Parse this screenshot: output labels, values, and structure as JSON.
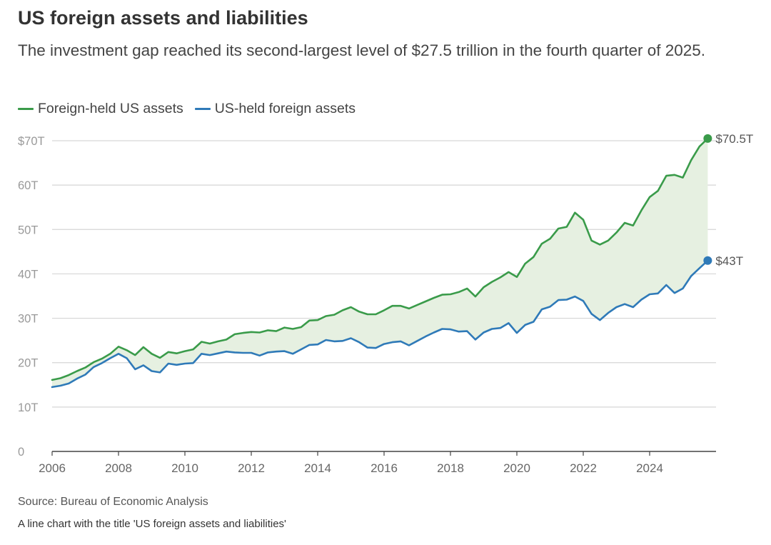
{
  "header": {
    "title": "US foreign assets and liabilities",
    "subtitle": "The investment gap reached its second-largest level of $27.5 trillion in the fourth quarter of 2025."
  },
  "footer": {
    "source": "Source: Bureau of Economic Analysis",
    "caption": "A line chart with the title 'US foreign assets and liabilities'"
  },
  "chart_data": {
    "type": "line",
    "title": "US foreign assets and liabilities",
    "xlabel": "",
    "ylabel": "",
    "xlim": [
      2006,
      2026
    ],
    "ylim": [
      0,
      70
    ],
    "yticks": [
      0,
      10,
      20,
      30,
      40,
      50,
      60,
      70
    ],
    "ytick_labels": [
      "0",
      "10T",
      "20T",
      "30T",
      "40T",
      "50T",
      "60T",
      "$70T"
    ],
    "xticks": [
      2006,
      2008,
      2010,
      2012,
      2014,
      2016,
      2018,
      2020,
      2022,
      2024
    ],
    "xtick_labels": [
      "2006",
      "2008",
      "2010",
      "2012",
      "2014",
      "2016",
      "2018",
      "2020",
      "2022",
      "2024"
    ],
    "grid": true,
    "legend": "top-left",
    "fill_between_series": true,
    "fill_color": "#e6f0e1",
    "series": [
      {
        "name": "Foreign-held US assets",
        "color": "#3a9b4a",
        "end_label": "$70.5T",
        "x": [
          2006.0,
          2006.25,
          2006.5,
          2006.75,
          2007.0,
          2007.25,
          2007.5,
          2007.75,
          2008.0,
          2008.25,
          2008.5,
          2008.75,
          2009.0,
          2009.25,
          2009.5,
          2009.75,
          2010.0,
          2010.25,
          2010.5,
          2010.75,
          2011.0,
          2011.25,
          2011.5,
          2011.75,
          2012.0,
          2012.25,
          2012.5,
          2012.75,
          2013.0,
          2013.25,
          2013.5,
          2013.75,
          2014.0,
          2014.25,
          2014.5,
          2014.75,
          2015.0,
          2015.25,
          2015.5,
          2015.75,
          2016.0,
          2016.25,
          2016.5,
          2016.75,
          2017.0,
          2017.25,
          2017.5,
          2017.75,
          2018.0,
          2018.25,
          2018.5,
          2018.75,
          2019.0,
          2019.25,
          2019.5,
          2019.75,
          2020.0,
          2020.25,
          2020.5,
          2020.75,
          2021.0,
          2021.25,
          2021.5,
          2021.75,
          2022.0,
          2022.25,
          2022.5,
          2022.75,
          2023.0,
          2023.25,
          2023.5,
          2023.75,
          2024.0,
          2024.25,
          2024.5,
          2024.75,
          2025.0,
          2025.25,
          2025.5,
          2025.75
        ],
        "values": [
          16.1,
          16.5,
          17.2,
          18.1,
          18.9,
          20.1,
          20.9,
          22.0,
          23.6,
          22.8,
          21.7,
          23.5,
          22.0,
          21.1,
          22.4,
          22.1,
          22.6,
          23.0,
          24.7,
          24.3,
          24.8,
          25.2,
          26.4,
          26.7,
          26.9,
          26.8,
          27.3,
          27.1,
          27.9,
          27.6,
          28.0,
          29.5,
          29.6,
          30.5,
          30.8,
          31.8,
          32.5,
          31.5,
          30.9,
          30.9,
          31.8,
          32.8,
          32.8,
          32.2,
          33.0,
          33.8,
          34.6,
          35.3,
          35.4,
          35.9,
          36.7,
          34.9,
          37.0,
          38.2,
          39.2,
          40.4,
          39.3,
          42.3,
          43.8,
          46.8,
          47.9,
          50.2,
          50.6,
          53.8,
          52.2,
          47.5,
          46.6,
          47.5,
          49.3,
          51.5,
          50.9,
          54.3,
          57.3,
          58.7,
          62.1,
          62.3,
          61.7,
          65.6,
          68.7,
          70.5
        ]
      },
      {
        "name": "US-held foreign assets",
        "color": "#2f7ab8",
        "end_label": "$43T",
        "x": [
          2006.0,
          2006.25,
          2006.5,
          2006.75,
          2007.0,
          2007.25,
          2007.5,
          2007.75,
          2008.0,
          2008.25,
          2008.5,
          2008.75,
          2009.0,
          2009.25,
          2009.5,
          2009.75,
          2010.0,
          2010.25,
          2010.5,
          2010.75,
          2011.0,
          2011.25,
          2011.5,
          2011.75,
          2012.0,
          2012.25,
          2012.5,
          2012.75,
          2013.0,
          2013.25,
          2013.5,
          2013.75,
          2014.0,
          2014.25,
          2014.5,
          2014.75,
          2015.0,
          2015.25,
          2015.5,
          2015.75,
          2016.0,
          2016.25,
          2016.5,
          2016.75,
          2017.0,
          2017.25,
          2017.5,
          2017.75,
          2018.0,
          2018.25,
          2018.5,
          2018.75,
          2019.0,
          2019.25,
          2019.5,
          2019.75,
          2020.0,
          2020.25,
          2020.5,
          2020.75,
          2021.0,
          2021.25,
          2021.5,
          2021.75,
          2022.0,
          2022.25,
          2022.5,
          2022.75,
          2023.0,
          2023.25,
          2023.5,
          2023.75,
          2024.0,
          2024.25,
          2024.5,
          2024.75,
          2025.0,
          2025.25,
          2025.5,
          2025.75
        ],
        "values": [
          14.5,
          14.8,
          15.3,
          16.4,
          17.3,
          19.0,
          19.9,
          21.0,
          22.0,
          21.0,
          18.5,
          19.4,
          18.1,
          17.8,
          19.8,
          19.5,
          19.8,
          19.9,
          22.0,
          21.7,
          22.1,
          22.5,
          22.3,
          22.2,
          22.2,
          21.6,
          22.3,
          22.5,
          22.6,
          22.0,
          23.0,
          24.0,
          24.1,
          25.1,
          24.8,
          24.9,
          25.5,
          24.6,
          23.4,
          23.3,
          24.2,
          24.6,
          24.8,
          23.9,
          24.9,
          25.9,
          26.8,
          27.6,
          27.5,
          27.0,
          27.1,
          25.2,
          26.8,
          27.6,
          27.8,
          28.9,
          26.7,
          28.5,
          29.2,
          32.0,
          32.6,
          34.1,
          34.2,
          34.9,
          33.9,
          31.0,
          29.6,
          31.2,
          32.5,
          33.2,
          32.5,
          34.2,
          35.4,
          35.6,
          37.5,
          35.7,
          36.7,
          39.5,
          41.3,
          43.0
        ]
      }
    ]
  }
}
